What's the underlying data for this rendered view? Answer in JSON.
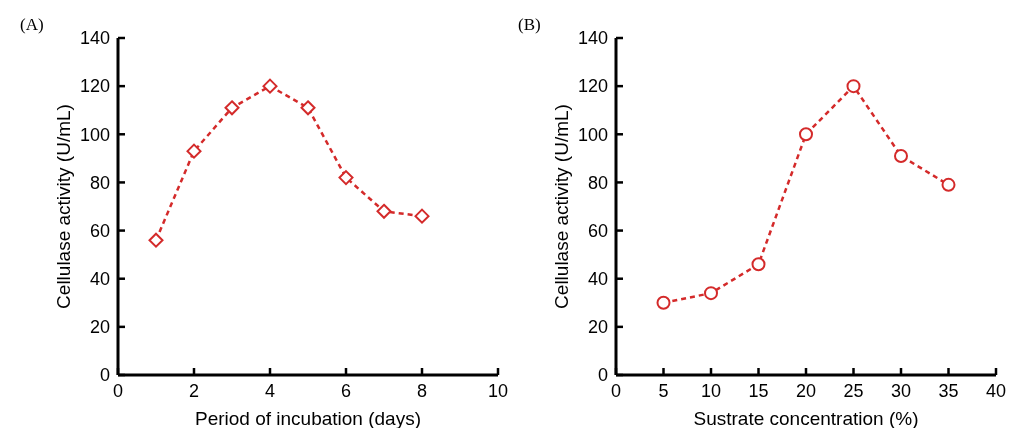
{
  "chart_data": [
    {
      "type": "line",
      "title": "(A)",
      "xlabel": "Period of incubation (days)",
      "ylabel": "Cellulase activity (U/mL)",
      "x": [
        1,
        2,
        3,
        4,
        5,
        6,
        7,
        8
      ],
      "series": [
        {
          "color": "#d42a2a",
          "values": [
            56,
            93,
            111,
            120,
            111,
            82,
            68,
            66
          ]
        }
      ],
      "xlim": [
        0,
        10
      ],
      "xticks": [
        0,
        2,
        4,
        6,
        8,
        10
      ],
      "ylim": [
        0,
        140
      ],
      "yticks": [
        0,
        20,
        40,
        60,
        80,
        100,
        120,
        140
      ],
      "marker": "diamond",
      "line_style": "dashed"
    },
    {
      "type": "line",
      "title": "(B)",
      "xlabel": "Sustrate concentration (%)",
      "ylabel": "Cellulase activity (U/mL)",
      "x": [
        5,
        10,
        15,
        20,
        25,
        30,
        35
      ],
      "series": [
        {
          "color": "#d42a2a",
          "values": [
            30,
            34,
            46,
            100,
            120,
            91,
            79
          ]
        }
      ],
      "xlim": [
        0,
        40
      ],
      "xticks": [
        0,
        5,
        10,
        15,
        20,
        25,
        30,
        35,
        40
      ],
      "ylim": [
        0,
        140
      ],
      "yticks": [
        0,
        20,
        40,
        60,
        80,
        100,
        120,
        140
      ],
      "marker": "circle",
      "line_style": "dashed"
    }
  ]
}
